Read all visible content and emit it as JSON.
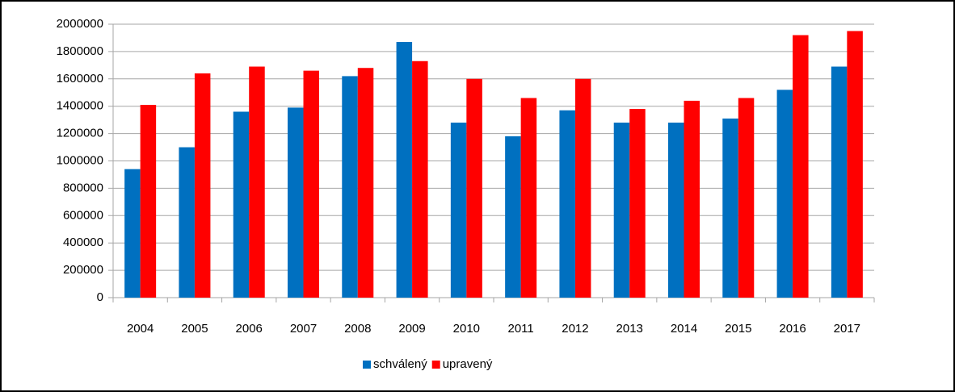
{
  "chart_data": {
    "type": "bar",
    "categories": [
      "2004",
      "2005",
      "2006",
      "2007",
      "2008",
      "2009",
      "2010",
      "2011",
      "2012",
      "2013",
      "2014",
      "2015",
      "2016",
      "2017"
    ],
    "series": [
      {
        "name": "schválený",
        "color": "#0070c0",
        "values": [
          940000,
          1100000,
          1360000,
          1390000,
          1620000,
          1870000,
          1280000,
          1180000,
          1370000,
          1280000,
          1280000,
          1310000,
          1520000,
          1690000
        ]
      },
      {
        "name": "upravený",
        "color": "#ff0000",
        "values": [
          1410000,
          1640000,
          1690000,
          1660000,
          1680000,
          1730000,
          1600000,
          1460000,
          1600000,
          1380000,
          1440000,
          1460000,
          1920000,
          1950000
        ]
      }
    ],
    "ylim": [
      0,
      2000000
    ],
    "yticks": [
      0,
      200000,
      400000,
      600000,
      800000,
      1000000,
      1200000,
      1400000,
      1600000,
      1800000,
      2000000
    ],
    "grid": true,
    "legend": "bottom"
  }
}
